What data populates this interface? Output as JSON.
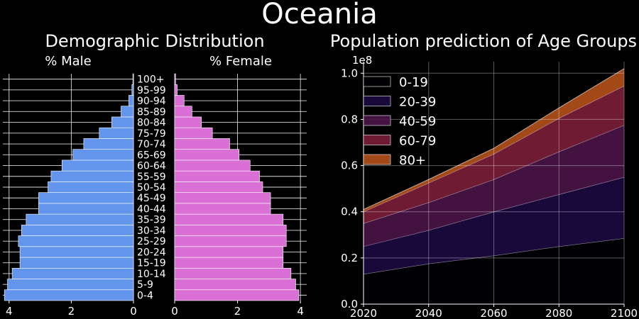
{
  "figure": {
    "title": "Oceania",
    "left_title": "Demographic Distribution",
    "right_title": "Population prediction of Age Groups"
  },
  "colors": {
    "background": "#000000",
    "male": "#6495ED",
    "female": "#DA70D6",
    "area_0_19": "#000004",
    "area_20_39": "#1C0A40",
    "area_40_59": "#4B1448",
    "area_60_79": "#7A1E38",
    "area_80_plus": "#B5501A"
  },
  "chart_data": [
    {
      "type": "bar",
      "orientation": "horizontal",
      "xlabel": "% Male",
      "xlim": [
        4.2,
        0
      ],
      "xticks": [
        "4",
        "2",
        "0"
      ],
      "categories": [
        "0-4",
        "5-9",
        "10-14",
        "15-19",
        "20-24",
        "25-29",
        "30-34",
        "35-39",
        "40-44",
        "45-49",
        "50-54",
        "55-59",
        "60-64",
        "65-69",
        "70-74",
        "75-79",
        "80-84",
        "85-89",
        "90-94",
        "95-99",
        "100+"
      ],
      "values": [
        4.15,
        4.05,
        3.9,
        3.65,
        3.65,
        3.7,
        3.6,
        3.45,
        3.05,
        3.05,
        2.75,
        2.65,
        2.3,
        1.95,
        1.6,
        1.1,
        0.7,
        0.4,
        0.15,
        0.05,
        0.02
      ],
      "grid": true
    },
    {
      "type": "bar",
      "orientation": "horizontal",
      "xlabel": "% Female",
      "xlim": [
        0,
        4.2
      ],
      "xticks": [
        "0",
        "2",
        "4"
      ],
      "categories": [
        "0-4",
        "5-9",
        "10-14",
        "15-19",
        "20-24",
        "25-29",
        "30-34",
        "35-39",
        "40-44",
        "45-49",
        "50-54",
        "55-59",
        "60-64",
        "65-69",
        "70-74",
        "75-79",
        "80-84",
        "85-89",
        "90-94",
        "95-99",
        "100+"
      ],
      "values": [
        3.95,
        3.85,
        3.7,
        3.45,
        3.45,
        3.55,
        3.55,
        3.45,
        3.05,
        3.05,
        2.8,
        2.7,
        2.4,
        2.05,
        1.75,
        1.2,
        0.85,
        0.55,
        0.3,
        0.08,
        0.03
      ],
      "grid": true
    },
    {
      "type": "area",
      "stacked": true,
      "x": [
        2020,
        2040,
        2060,
        2080,
        2100
      ],
      "xticks": [
        "2020",
        "2040",
        "2060",
        "2080",
        "2100"
      ],
      "xlim": [
        2020,
        2100
      ],
      "ylim": [
        0,
        1.05
      ],
      "yticks": [
        "0.0",
        "0.2",
        "0.4",
        "0.6",
        "0.8",
        "1.0"
      ],
      "yscale_label": "1e8",
      "series": [
        {
          "name": "0-19",
          "values": [
            0.13,
            0.175,
            0.21,
            0.25,
            0.285
          ]
        },
        {
          "name": "20-39",
          "values": [
            0.12,
            0.145,
            0.19,
            0.225,
            0.265
          ]
        },
        {
          "name": "40-59",
          "values": [
            0.1,
            0.12,
            0.14,
            0.185,
            0.225
          ]
        },
        {
          "name": "60-79",
          "values": [
            0.05,
            0.085,
            0.11,
            0.145,
            0.17
          ]
        },
        {
          "name": "80+",
          "values": [
            0.01,
            0.015,
            0.025,
            0.045,
            0.075
          ]
        }
      ],
      "legend": "top-left",
      "grid": true
    }
  ]
}
